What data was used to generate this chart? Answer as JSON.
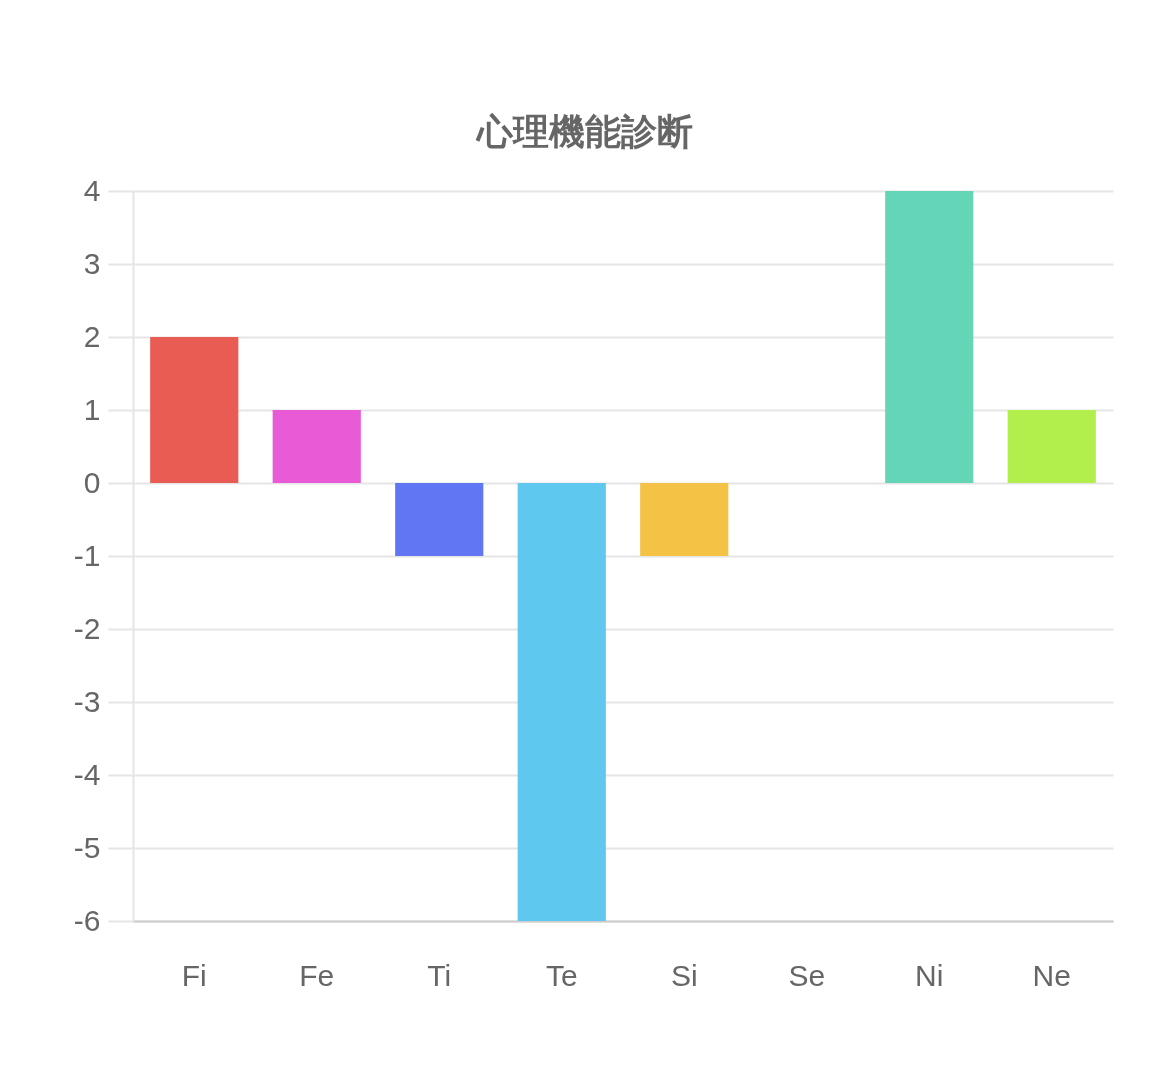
{
  "chart_data": {
    "type": "bar",
    "title": "心理機能診断",
    "categories": [
      "Fi",
      "Fe",
      "Ti",
      "Te",
      "Si",
      "Se",
      "Ni",
      "Ne"
    ],
    "values": [
      2,
      1,
      -1,
      -6,
      -1,
      0,
      4,
      1
    ],
    "colors": [
      "#e95c54",
      "#e95bd6",
      "#6076f3",
      "#5ec8ee",
      "#f4c346",
      "#f39c4a",
      "#65d5b7",
      "#b2ef4c"
    ],
    "ylim": [
      -6,
      4
    ],
    "yticks": [
      -6,
      -5,
      -4,
      -3,
      -2,
      -1,
      0,
      1,
      2,
      3,
      4
    ],
    "grid": "y"
  }
}
